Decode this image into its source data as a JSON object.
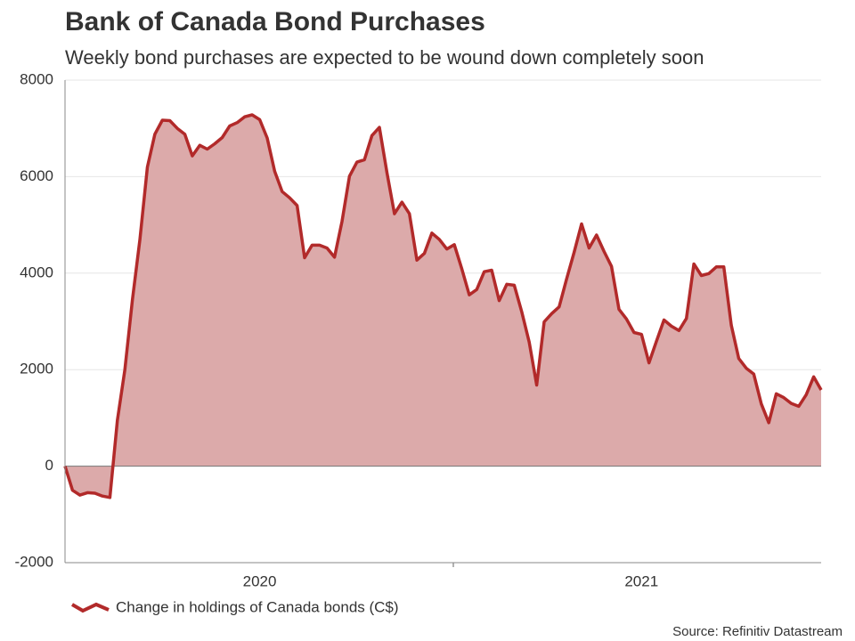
{
  "chart_data": {
    "type": "area",
    "title": "Bank of Canada Bond Purchases",
    "subtitle": "Weekly bond purchases are expected to be wound down completely soon",
    "source": "Source: Refinitiv Datastream",
    "categories": [
      null,
      null,
      null,
      null,
      null,
      null,
      null,
      null,
      null,
      null,
      null,
      null,
      null,
      null,
      null,
      null,
      null,
      null,
      null,
      null,
      null,
      null,
      null,
      null,
      null,
      null,
      "2020",
      null,
      null,
      null,
      null,
      null,
      null,
      null,
      null,
      null,
      null,
      null,
      null,
      null,
      null,
      null,
      null,
      null,
      null,
      null,
      null,
      null,
      null,
      null,
      null,
      null,
      null,
      null,
      null,
      null,
      null,
      null,
      null,
      null,
      null,
      null,
      null,
      null,
      null,
      null,
      null,
      null,
      null,
      null,
      null,
      null,
      null,
      null,
      null,
      null,
      null,
      "2021",
      null,
      null,
      null,
      null,
      null,
      null,
      null,
      null,
      null,
      null,
      null,
      null,
      null,
      null,
      null,
      null,
      null,
      null,
      null,
      null,
      null,
      null,
      null,
      null
    ],
    "series": [
      {
        "name": "Change in holdings of Canada bonds (C$)",
        "color": "#b22a2a",
        "fill": "#dcaaaa",
        "values": [
          0,
          -500,
          -600,
          -550,
          -560,
          -620,
          -650,
          950,
          2000,
          3450,
          4700,
          6200,
          6880,
          7170,
          7160,
          7000,
          6880,
          6430,
          6650,
          6570,
          6680,
          6810,
          7050,
          7120,
          7240,
          7280,
          7180,
          6800,
          6110,
          5690,
          5560,
          5400,
          4320,
          4580,
          4580,
          4520,
          4330,
          5070,
          6010,
          6300,
          6350,
          6850,
          7020,
          6080,
          5230,
          5470,
          5230,
          4270,
          4410,
          4830,
          4700,
          4500,
          4590,
          4090,
          3550,
          3660,
          4030,
          4060,
          3430,
          3770,
          3750,
          3200,
          2570,
          1680,
          2990,
          3160,
          3300,
          3880,
          4430,
          5020,
          4520,
          4790,
          4450,
          4140,
          3250,
          3050,
          2770,
          2730,
          2140,
          2590,
          3030,
          2900,
          2810,
          3060,
          4190,
          3950,
          3990,
          4130,
          4130,
          2920,
          2230,
          2030,
          1910,
          1290,
          900,
          1500,
          1420,
          1300,
          1240,
          1480,
          1850,
          1580
        ]
      }
    ],
    "ylim": [
      -2000,
      8000
    ],
    "yticks": [
      -2000,
      0,
      2000,
      4000,
      6000,
      8000
    ],
    "grid": true
  }
}
